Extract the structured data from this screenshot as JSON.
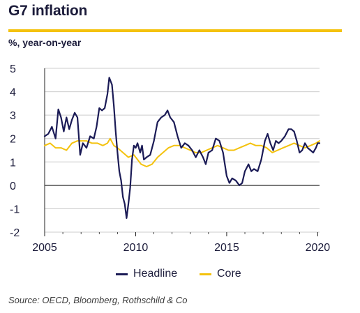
{
  "header": {
    "title": "G7 inflation",
    "subtitle": "%, year-on-year"
  },
  "footer": {
    "source": "Source: OECD, Bloomberg, Rothschild & Co"
  },
  "colors": {
    "headline": "#1b1b56",
    "core": "#f4c20d",
    "axis": "#222222",
    "grid": "#cccccc",
    "rule": "#f4c20d"
  },
  "chart_data": {
    "type": "line",
    "title": "G7 inflation",
    "ylabel": "%, year-on-year",
    "xlim": [
      2005,
      2020.1
    ],
    "ylim": [
      -2,
      5
    ],
    "xticks": [
      2005,
      2010,
      2015,
      2020
    ],
    "yticks": [
      -2,
      -1,
      0,
      1,
      2,
      3,
      4,
      5
    ],
    "grid": "horizontal",
    "legend": "bottom",
    "series": [
      {
        "name": "Headline",
        "points": [
          [
            2005.0,
            2.1
          ],
          [
            2005.2,
            2.2
          ],
          [
            2005.4,
            2.5
          ],
          [
            2005.6,
            2.0
          ],
          [
            2005.75,
            3.25
          ],
          [
            2005.9,
            2.9
          ],
          [
            2006.05,
            2.3
          ],
          [
            2006.2,
            2.9
          ],
          [
            2006.35,
            2.4
          ],
          [
            2006.5,
            2.8
          ],
          [
            2006.65,
            3.1
          ],
          [
            2006.8,
            2.9
          ],
          [
            2006.95,
            1.3
          ],
          [
            2007.1,
            1.8
          ],
          [
            2007.3,
            1.6
          ],
          [
            2007.5,
            2.1
          ],
          [
            2007.7,
            2.0
          ],
          [
            2007.85,
            2.5
          ],
          [
            2008.0,
            3.3
          ],
          [
            2008.15,
            3.2
          ],
          [
            2008.3,
            3.3
          ],
          [
            2008.45,
            3.9
          ],
          [
            2008.55,
            4.6
          ],
          [
            2008.7,
            4.3
          ],
          [
            2008.8,
            3.4
          ],
          [
            2008.9,
            2.3
          ],
          [
            2009.0,
            1.4
          ],
          [
            2009.1,
            0.6
          ],
          [
            2009.2,
            0.2
          ],
          [
            2009.3,
            -0.5
          ],
          [
            2009.4,
            -0.8
          ],
          [
            2009.5,
            -1.4
          ],
          [
            2009.6,
            -0.8
          ],
          [
            2009.7,
            -0.1
          ],
          [
            2009.8,
            1.1
          ],
          [
            2009.9,
            1.7
          ],
          [
            2010.0,
            1.6
          ],
          [
            2010.1,
            1.8
          ],
          [
            2010.25,
            1.4
          ],
          [
            2010.35,
            1.7
          ],
          [
            2010.45,
            1.1
          ],
          [
            2010.6,
            1.2
          ],
          [
            2010.8,
            1.3
          ],
          [
            2011.0,
            1.9
          ],
          [
            2011.2,
            2.7
          ],
          [
            2011.4,
            2.9
          ],
          [
            2011.6,
            3.0
          ],
          [
            2011.75,
            3.2
          ],
          [
            2011.9,
            2.9
          ],
          [
            2012.1,
            2.7
          ],
          [
            2012.3,
            2.1
          ],
          [
            2012.5,
            1.6
          ],
          [
            2012.7,
            1.8
          ],
          [
            2012.9,
            1.7
          ],
          [
            2013.1,
            1.5
          ],
          [
            2013.3,
            1.2
          ],
          [
            2013.5,
            1.5
          ],
          [
            2013.7,
            1.2
          ],
          [
            2013.85,
            0.9
          ],
          [
            2014.0,
            1.4
          ],
          [
            2014.2,
            1.5
          ],
          [
            2014.4,
            2.0
          ],
          [
            2014.6,
            1.9
          ],
          [
            2014.8,
            1.4
          ],
          [
            2015.0,
            0.4
          ],
          [
            2015.15,
            0.1
          ],
          [
            2015.3,
            0.3
          ],
          [
            2015.5,
            0.2
          ],
          [
            2015.7,
            0.0
          ],
          [
            2015.85,
            0.1
          ],
          [
            2016.0,
            0.6
          ],
          [
            2016.2,
            0.9
          ],
          [
            2016.35,
            0.6
          ],
          [
            2016.5,
            0.7
          ],
          [
            2016.7,
            0.6
          ],
          [
            2016.9,
            1.1
          ],
          [
            2017.1,
            1.9
          ],
          [
            2017.25,
            2.2
          ],
          [
            2017.4,
            1.8
          ],
          [
            2017.55,
            1.5
          ],
          [
            2017.7,
            1.9
          ],
          [
            2017.85,
            1.8
          ],
          [
            2018.0,
            1.9
          ],
          [
            2018.2,
            2.1
          ],
          [
            2018.4,
            2.4
          ],
          [
            2018.55,
            2.4
          ],
          [
            2018.7,
            2.3
          ],
          [
            2018.85,
            1.9
          ],
          [
            2019.0,
            1.4
          ],
          [
            2019.15,
            1.5
          ],
          [
            2019.3,
            1.8
          ],
          [
            2019.45,
            1.6
          ],
          [
            2019.6,
            1.5
          ],
          [
            2019.75,
            1.4
          ],
          [
            2019.9,
            1.6
          ],
          [
            2020.0,
            1.8
          ],
          [
            2020.1,
            1.8
          ]
        ]
      },
      {
        "name": "Core",
        "points": [
          [
            2005.0,
            1.7
          ],
          [
            2005.3,
            1.8
          ],
          [
            2005.6,
            1.6
          ],
          [
            2005.9,
            1.6
          ],
          [
            2006.2,
            1.5
          ],
          [
            2006.5,
            1.8
          ],
          [
            2006.8,
            1.9
          ],
          [
            2007.0,
            1.9
          ],
          [
            2007.3,
            1.9
          ],
          [
            2007.6,
            1.8
          ],
          [
            2007.9,
            1.8
          ],
          [
            2008.2,
            1.7
          ],
          [
            2008.45,
            1.8
          ],
          [
            2008.6,
            2.0
          ],
          [
            2008.8,
            1.7
          ],
          [
            2009.0,
            1.6
          ],
          [
            2009.3,
            1.4
          ],
          [
            2009.6,
            1.2
          ],
          [
            2009.9,
            1.3
          ],
          [
            2010.1,
            1.1
          ],
          [
            2010.3,
            0.9
          ],
          [
            2010.6,
            0.8
          ],
          [
            2010.9,
            0.9
          ],
          [
            2011.2,
            1.2
          ],
          [
            2011.5,
            1.4
          ],
          [
            2011.8,
            1.6
          ],
          [
            2012.1,
            1.7
          ],
          [
            2012.4,
            1.7
          ],
          [
            2012.7,
            1.6
          ],
          [
            2013.0,
            1.5
          ],
          [
            2013.3,
            1.4
          ],
          [
            2013.6,
            1.4
          ],
          [
            2013.9,
            1.5
          ],
          [
            2014.2,
            1.6
          ],
          [
            2014.5,
            1.7
          ],
          [
            2014.8,
            1.6
          ],
          [
            2015.1,
            1.5
          ],
          [
            2015.4,
            1.5
          ],
          [
            2015.7,
            1.6
          ],
          [
            2016.0,
            1.7
          ],
          [
            2016.3,
            1.8
          ],
          [
            2016.6,
            1.7
          ],
          [
            2016.9,
            1.7
          ],
          [
            2017.2,
            1.6
          ],
          [
            2017.5,
            1.4
          ],
          [
            2017.8,
            1.5
          ],
          [
            2018.1,
            1.6
          ],
          [
            2018.4,
            1.7
          ],
          [
            2018.7,
            1.8
          ],
          [
            2019.0,
            1.7
          ],
          [
            2019.3,
            1.6
          ],
          [
            2019.6,
            1.7
          ],
          [
            2019.9,
            1.8
          ],
          [
            2020.1,
            1.9
          ]
        ]
      }
    ]
  }
}
